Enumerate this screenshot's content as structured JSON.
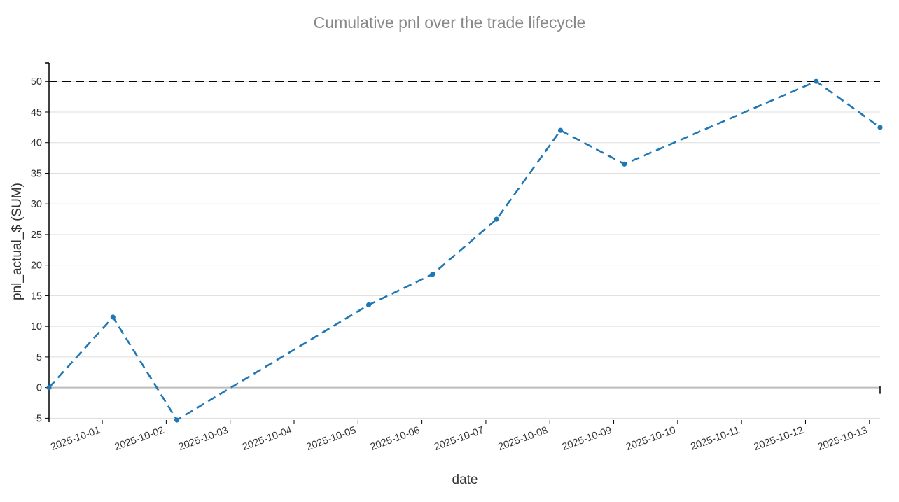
{
  "chart_data": {
    "type": "line",
    "title": "Cumulative pnl over the trade lifecycle",
    "xlabel": "date",
    "ylabel": "pnl_actual_$ (SUM)",
    "x_ticks": [
      "2025-10-01",
      "2025-10-02",
      "2025-10-03",
      "2025-10-04",
      "2025-10-05",
      "2025-10-06",
      "2025-10-07",
      "2025-10-08",
      "2025-10-09",
      "2025-10-10",
      "2025-10-11",
      "2025-10-12",
      "2025-10-13"
    ],
    "y_ticks": [
      "-5",
      "0",
      "5",
      "10",
      "15",
      "20",
      "25",
      "30",
      "35",
      "40",
      "45",
      "50"
    ],
    "ylim": [
      -5.3,
      53
    ],
    "xlim": [
      "2025-09-30 04:00",
      "2025-10-13 04:00"
    ],
    "grid": true,
    "reference_line": {
      "y": 50,
      "style": "dashed",
      "color": "#000000"
    },
    "series": [
      {
        "color": "#1f77b4",
        "style": "dashed",
        "x": [
          "2025-09-30 04:00",
          "2025-10-01 04:00",
          "2025-10-02 04:00",
          "2025-10-05 04:00",
          "2025-10-06 04:00",
          "2025-10-07 04:00",
          "2025-10-08 04:00",
          "2025-10-09 04:00",
          "2025-10-12 04:00",
          "2025-10-13 04:00"
        ],
        "values": [
          0,
          11.5,
          -5.3,
          13.5,
          18.5,
          27.5,
          42,
          36.5,
          50,
          42.5
        ]
      }
    ]
  }
}
